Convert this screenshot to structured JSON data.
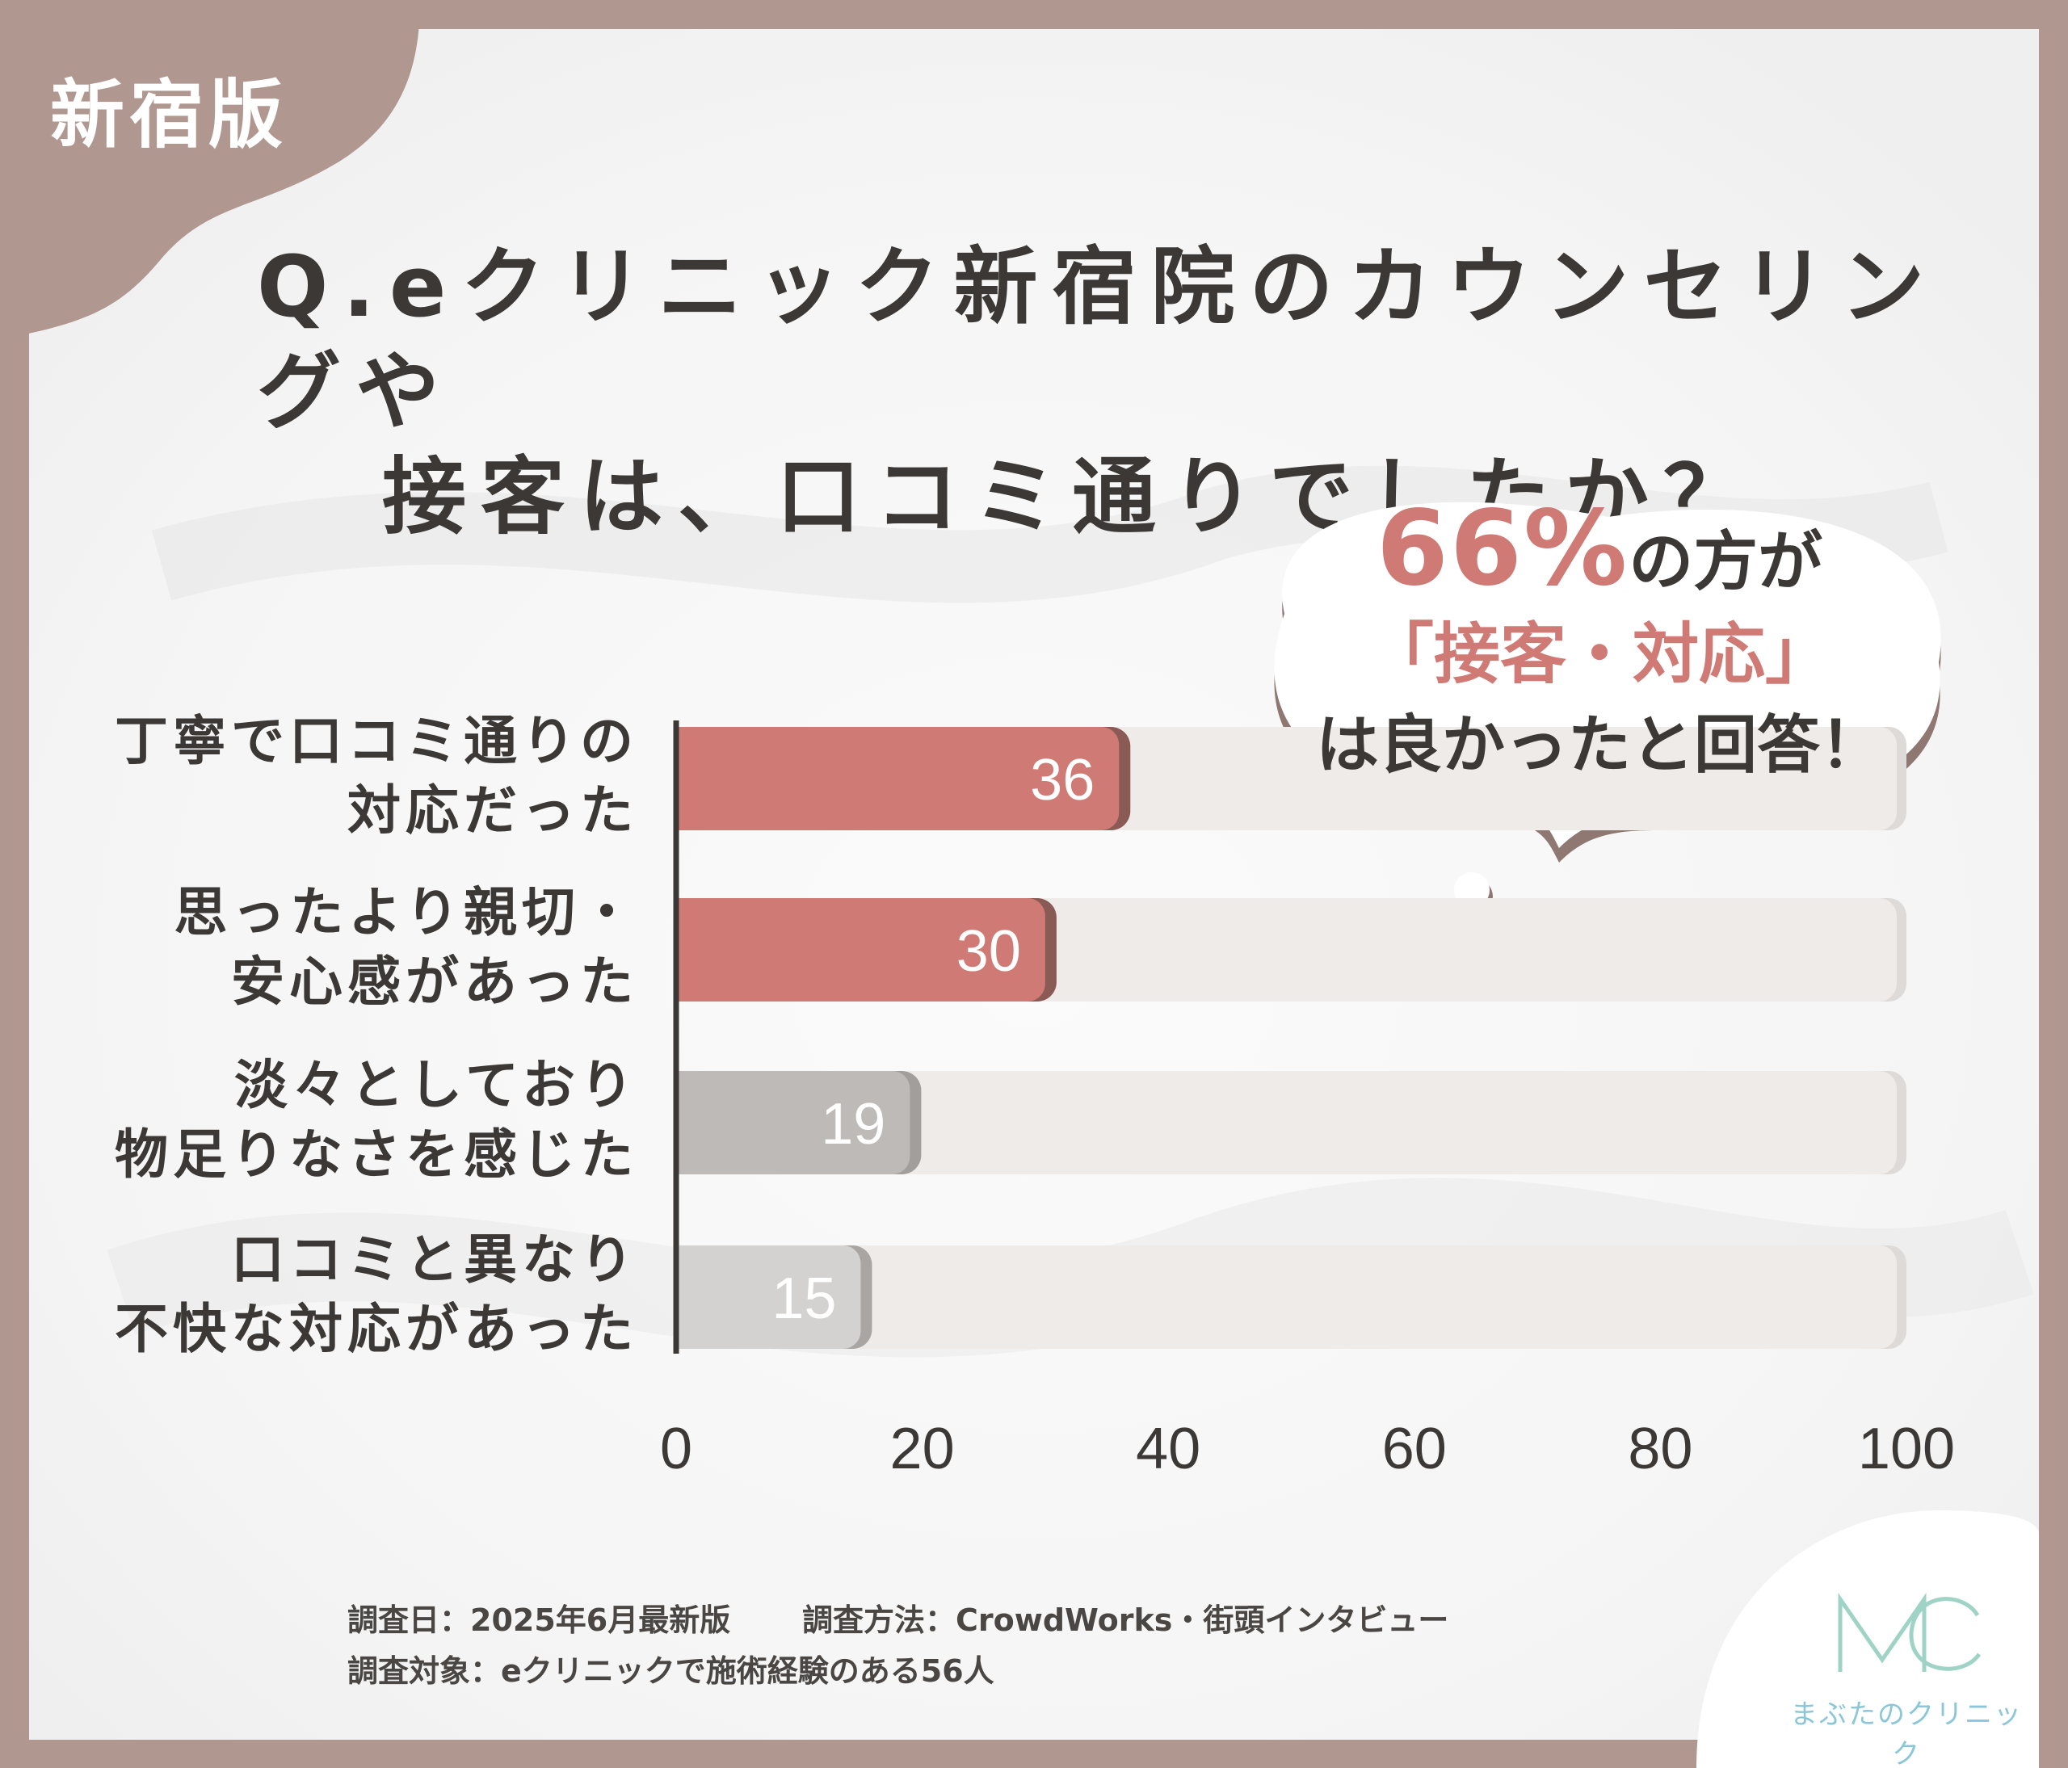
{
  "badge": "新宿版",
  "title": {
    "line1": "Q.eクリニック新宿院のカウンセリングや",
    "line2": "接客は、口コミ通りでしたか？"
  },
  "callout": {
    "percent": "66%",
    "line1_suffix": "の方が",
    "line2": "「接客・対応」",
    "line3": "は良かったと回答！"
  },
  "chart_data": {
    "type": "bar",
    "orientation": "horizontal",
    "categories": [
      [
        "丁寧で口コミ通りの",
        "対応だった"
      ],
      [
        "思ったより親切・",
        "安心感があった"
      ],
      [
        "淡々としており",
        "物足りなさを感じた"
      ],
      [
        "口コミと異なり",
        "不快な対応があった"
      ]
    ],
    "values": [
      36,
      30,
      19,
      15
    ],
    "value_labels": [
      "36",
      "30",
      "19",
      "15"
    ],
    "xlim": [
      0,
      100
    ],
    "xticks": [
      0,
      20,
      40,
      60,
      80,
      100
    ],
    "xtick_labels": [
      "0",
      "20",
      "40",
      "60",
      "80",
      "100"
    ],
    "bar_colors": [
      "#cf7a74",
      "#cf7a74",
      "#bdbab8",
      "#d4d2d0"
    ],
    "bar_shadow_colors": [
      "#8a5a55",
      "#8a5a55",
      "#a29e9b",
      "#a8a5a3"
    ],
    "track_color": "#efebe8",
    "track_shadow_color": "#dedad7"
  },
  "footer": {
    "survey_date": "調査日：2025年6月最新版",
    "survey_method": "調査方法：CrowdWorks・街頭インタビュー",
    "survey_target": "調査対象：eクリニックで施術経験のある56人"
  },
  "logo": {
    "mark": "MC",
    "name": "まぶたのクリニック"
  }
}
